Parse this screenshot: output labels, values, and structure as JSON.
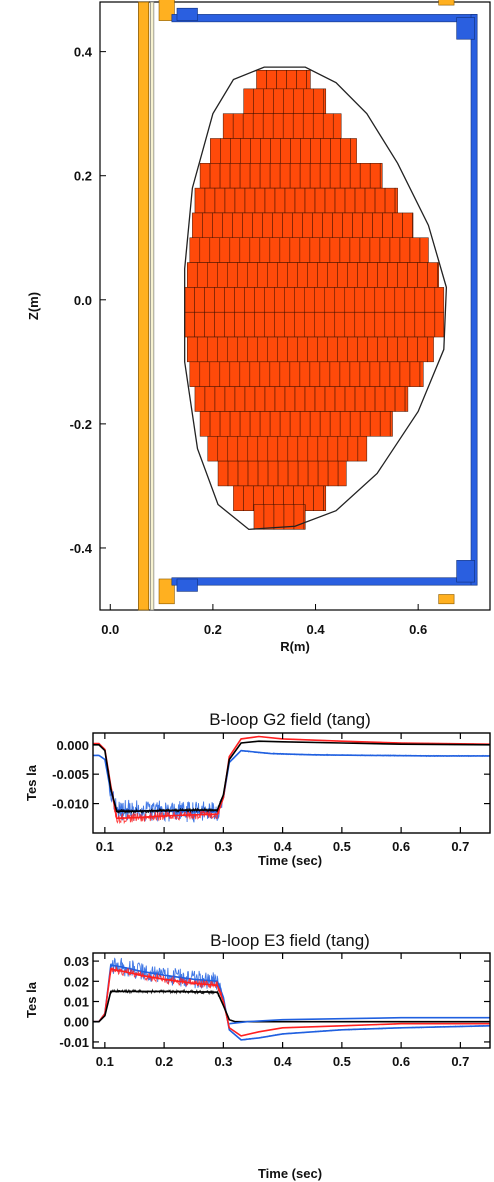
{
  "chart_data": [
    {
      "type": "heatmap",
      "xlabel": "R(m)",
      "ylabel": "Z(m)",
      "xlim": [
        -0.02,
        0.74
      ],
      "ylim": [
        -0.5,
        0.48
      ],
      "xticks": [
        "0.0",
        "0.2",
        "0.4",
        "0.6"
      ],
      "xtick_values": [
        0.0,
        0.2,
        0.4,
        0.6
      ],
      "yticks": [
        "-0.4",
        "-0.2",
        "0.0",
        "0.2",
        "0.4"
      ],
      "ytick_values": [
        -0.4,
        -0.2,
        0.0,
        0.2,
        0.4
      ],
      "plasma_cell_size_m": 0.0195,
      "plasma_rows": [
        {
          "z": 0.35,
          "r0": 0.285,
          "r1": 0.39
        },
        {
          "z": 0.32,
          "r0": 0.26,
          "r1": 0.42
        },
        {
          "z": 0.28,
          "r0": 0.22,
          "r1": 0.45
        },
        {
          "z": 0.24,
          "r0": 0.195,
          "r1": 0.48
        },
        {
          "z": 0.2,
          "r0": 0.175,
          "r1": 0.53
        },
        {
          "z": 0.16,
          "r0": 0.165,
          "r1": 0.56
        },
        {
          "z": 0.12,
          "r0": 0.16,
          "r1": 0.59
        },
        {
          "z": 0.08,
          "r0": 0.155,
          "r1": 0.62
        },
        {
          "z": 0.04,
          "r0": 0.15,
          "r1": 0.64
        },
        {
          "z": 0.0,
          "r0": 0.145,
          "r1": 0.65
        },
        {
          "z": -0.04,
          "r0": 0.145,
          "r1": 0.65
        },
        {
          "z": -0.08,
          "r0": 0.15,
          "r1": 0.63
        },
        {
          "z": -0.12,
          "r0": 0.155,
          "r1": 0.61
        },
        {
          "z": -0.16,
          "r0": 0.165,
          "r1": 0.58
        },
        {
          "z": -0.2,
          "r0": 0.175,
          "r1": 0.55
        },
        {
          "z": -0.24,
          "r0": 0.19,
          "r1": 0.5
        },
        {
          "z": -0.28,
          "r0": 0.21,
          "r1": 0.46
        },
        {
          "z": -0.32,
          "r0": 0.24,
          "r1": 0.42
        },
        {
          "z": -0.35,
          "r0": 0.28,
          "r1": 0.38
        }
      ],
      "boundary": [
        [
          0.3,
          0.375
        ],
        [
          0.38,
          0.375
        ],
        [
          0.44,
          0.35
        ],
        [
          0.5,
          0.3
        ],
        [
          0.56,
          0.22
        ],
        [
          0.62,
          0.12
        ],
        [
          0.655,
          0.02
        ],
        [
          0.65,
          -0.08
        ],
        [
          0.6,
          -0.18
        ],
        [
          0.52,
          -0.28
        ],
        [
          0.44,
          -0.34
        ],
        [
          0.36,
          -0.365
        ],
        [
          0.27,
          -0.37
        ],
        [
          0.21,
          -0.33
        ],
        [
          0.17,
          -0.24
        ],
        [
          0.145,
          -0.1
        ],
        [
          0.145,
          0.05
        ],
        [
          0.16,
          0.18
        ],
        [
          0.2,
          0.3
        ],
        [
          0.24,
          0.355
        ]
      ],
      "colors": {
        "plasma": "#ff4a0a",
        "wall": "#2a5fe0",
        "coil": "#ffb020",
        "boundary": "#222222"
      }
    },
    {
      "type": "line",
      "title": "B-loop G2 field (tang)",
      "xlabel": "Time (sec)",
      "ylabel": "Tes la",
      "xlim": [
        0.08,
        0.75
      ],
      "ylim": [
        -0.015,
        0.002
      ],
      "xticks": [
        "0.1",
        "0.2",
        "0.3",
        "0.4",
        "0.5",
        "0.6",
        "0.7"
      ],
      "xtick_values": [
        0.1,
        0.2,
        0.3,
        0.4,
        0.5,
        0.6,
        0.7
      ],
      "yticks": [
        "0.000",
        "-0.005",
        "-0.010"
      ],
      "ytick_values": [
        0.0,
        -0.005,
        -0.01
      ],
      "series": [
        {
          "color": "#2060e0",
          "x": [
            0.08,
            0.09,
            0.1,
            0.11,
            0.12,
            0.15,
            0.2,
            0.25,
            0.29,
            0.3,
            0.31,
            0.33,
            0.38,
            0.45,
            0.55,
            0.65,
            0.75
          ],
          "y": [
            -0.0018,
            -0.0018,
            -0.0025,
            -0.008,
            -0.011,
            -0.0112,
            -0.0113,
            -0.0114,
            -0.0114,
            -0.009,
            -0.003,
            -0.001,
            -0.0015,
            -0.0017,
            -0.0018,
            -0.0019,
            -0.0019
          ],
          "band": 0.0018
        },
        {
          "color": "#ff2020",
          "x": [
            0.08,
            0.09,
            0.1,
            0.11,
            0.12,
            0.15,
            0.2,
            0.25,
            0.29,
            0.3,
            0.31,
            0.33,
            0.36,
            0.4,
            0.5,
            0.6,
            0.75
          ],
          "y": [
            0.0002,
            0.0002,
            -0.0008,
            -0.007,
            -0.0125,
            -0.0124,
            -0.0121,
            -0.0119,
            -0.0118,
            -0.009,
            -0.002,
            0.001,
            0.0014,
            0.001,
            0.0006,
            0.0003,
            0.0001
          ],
          "band": 0.0008
        },
        {
          "color": "#000000",
          "x": [
            0.08,
            0.09,
            0.1,
            0.11,
            0.12,
            0.15,
            0.2,
            0.25,
            0.29,
            0.3,
            0.31,
            0.33,
            0.36,
            0.4,
            0.5,
            0.6,
            0.75
          ],
          "y": [
            0.0,
            0.0,
            -0.001,
            -0.0075,
            -0.0113,
            -0.0113,
            -0.0112,
            -0.0111,
            -0.0111,
            -0.0085,
            -0.0025,
            0.0003,
            0.0006,
            0.0005,
            0.0003,
            0.0001,
            0.0
          ],
          "band": 0.0003
        }
      ]
    },
    {
      "type": "line",
      "title": "B-loop E3 field (tang)",
      "xlabel": "Time (sec)",
      "ylabel": "Tes la",
      "xlim": [
        0.08,
        0.75
      ],
      "ylim": [
        -0.013,
        0.034
      ],
      "xticks": [
        "0.1",
        "0.2",
        "0.3",
        "0.4",
        "0.5",
        "0.6",
        "0.7"
      ],
      "xtick_values": [
        0.1,
        0.2,
        0.3,
        0.4,
        0.5,
        0.6,
        0.7
      ],
      "yticks": [
        "0.03",
        "0.02",
        "0.01",
        "0.00",
        "-0.01"
      ],
      "ytick_values": [
        0.03,
        0.02,
        0.01,
        0.0,
        -0.01
      ],
      "series": [
        {
          "color": "#2060e0",
          "x": [
            0.08,
            0.09,
            0.1,
            0.11,
            0.13,
            0.16,
            0.2,
            0.25,
            0.29,
            0.3,
            0.31,
            0.33,
            0.36,
            0.4,
            0.5,
            0.6,
            0.75
          ],
          "y": [
            0.0,
            0.0,
            0.004,
            0.028,
            0.027,
            0.025,
            0.023,
            0.021,
            0.02,
            0.012,
            -0.004,
            -0.009,
            -0.008,
            -0.006,
            -0.004,
            -0.003,
            -0.002
          ],
          "band": 0.0045
        },
        {
          "color": "#ff2020",
          "x": [
            0.08,
            0.09,
            0.1,
            0.11,
            0.13,
            0.16,
            0.2,
            0.25,
            0.29,
            0.3,
            0.31,
            0.33,
            0.36,
            0.4,
            0.5,
            0.6,
            0.75
          ],
          "y": [
            0.0,
            0.0,
            0.004,
            0.026,
            0.025,
            0.023,
            0.021,
            0.019,
            0.018,
            0.01,
            -0.003,
            -0.007,
            -0.005,
            -0.003,
            -0.002,
            -0.001,
            -0.001
          ],
          "band": 0.002
        },
        {
          "color": "#000000",
          "x": [
            0.08,
            0.09,
            0.1,
            0.11,
            0.13,
            0.16,
            0.2,
            0.25,
            0.29,
            0.3,
            0.31,
            0.32,
            0.34,
            0.4,
            0.5,
            0.6,
            0.75
          ],
          "y": [
            0.0,
            0.0,
            0.003,
            0.015,
            0.015,
            0.015,
            0.015,
            0.0148,
            0.0146,
            0.008,
            0.001,
            0.0,
            0.0,
            0.0,
            0.0,
            0.0,
            0.0
          ],
          "band": 0.0008
        },
        {
          "color": "#2060e0",
          "x": [
            0.31,
            0.34,
            0.4,
            0.5,
            0.6,
            0.75
          ],
          "y": [
            -0.001,
            0.0,
            0.001,
            0.0015,
            0.002,
            0.002
          ],
          "band": 0
        }
      ]
    }
  ]
}
